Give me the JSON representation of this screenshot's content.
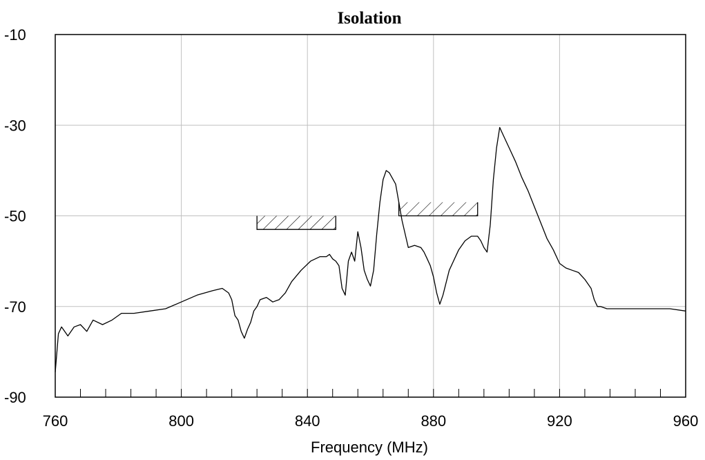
{
  "chart_data": {
    "type": "line",
    "title": "Isolation",
    "xlabel": "Frequency (MHz)",
    "ylabel": "",
    "xlim": [
      760,
      960
    ],
    "ylim": [
      -90,
      -10
    ],
    "x_ticks": [
      760,
      800,
      840,
      880,
      920,
      960
    ],
    "x_tick_labels": [
      "760",
      "800",
      "840",
      "880",
      "920",
      "960"
    ],
    "y_ticks": [
      -90,
      -70,
      -50,
      -30,
      -10
    ],
    "y_tick_labels": [
      "-90",
      "-70",
      "-50",
      "-30",
      "-10"
    ],
    "x_minor_step": 8,
    "grid": true,
    "colors": {
      "line": "#000000",
      "grid": "#c0c0c0",
      "frame": "#000000",
      "background": "#ffffff"
    },
    "series": [
      {
        "x": [
          760,
          761,
          762,
          764,
          766,
          768,
          770,
          772,
          775,
          778,
          781,
          785,
          790,
          795,
          800,
          805,
          810,
          813,
          815,
          816,
          817,
          818,
          819,
          820,
          821,
          822,
          823,
          824,
          825,
          827,
          829,
          831,
          833,
          835,
          838,
          841,
          844,
          846,
          847,
          848,
          849,
          850,
          851,
          852,
          853,
          854,
          855,
          856,
          857,
          858,
          859,
          860,
          861,
          862,
          863,
          864,
          865,
          866,
          868,
          870,
          872,
          874,
          876,
          877,
          878,
          879,
          880,
          881,
          882,
          883,
          885,
          888,
          890,
          892,
          894,
          895,
          896,
          897,
          898,
          899,
          900,
          901,
          902,
          904,
          906,
          908,
          910,
          912,
          914,
          916,
          918,
          920,
          922,
          924,
          926,
          928,
          930,
          931,
          932,
          933,
          935,
          940,
          945,
          950,
          955,
          960
        ],
        "y": [
          -84.5,
          -76,
          -74.5,
          -76.5,
          -74.5,
          -74,
          -75.5,
          -73,
          -74,
          -73,
          -71.5,
          -71.5,
          -71,
          -70.5,
          -69,
          -67.5,
          -66.5,
          -66,
          -67,
          -68.5,
          -72,
          -73,
          -75.5,
          -77,
          -75,
          -73.5,
          -71,
          -70,
          -68.5,
          -68,
          -69,
          -68.5,
          -67,
          -64.5,
          -62,
          -60,
          -59,
          -59,
          -58.5,
          -59.5,
          -60,
          -61,
          -66,
          -67.5,
          -60,
          -58,
          -60,
          -53.5,
          -57,
          -62,
          -64,
          -65.5,
          -62,
          -54,
          -47,
          -42,
          -40,
          -40.5,
          -43,
          -51,
          -57,
          -56.5,
          -57,
          -58,
          -59.5,
          -61,
          -63.5,
          -67,
          -69.5,
          -67.5,
          -62,
          -57.5,
          -55.5,
          -54.5,
          -54.5,
          -55.5,
          -57,
          -58,
          -52,
          -42,
          -35,
          -30.5,
          -32,
          -35,
          -38,
          -41.5,
          -44.5,
          -48,
          -51.5,
          -55,
          -57.5,
          -60.5,
          -61.5,
          -62,
          -62.5,
          -64,
          -66,
          -68.5,
          -70,
          -70,
          -70.5,
          -70.5,
          -70.5,
          -70.5,
          -70.5,
          -71
        ]
      }
    ],
    "annotations": [
      {
        "type": "hatched-box",
        "x": [
          824,
          849
        ],
        "y": [
          -53,
          -50
        ]
      },
      {
        "type": "hatched-box",
        "x": [
          869,
          894
        ],
        "y": [
          -50,
          -47
        ]
      }
    ]
  }
}
